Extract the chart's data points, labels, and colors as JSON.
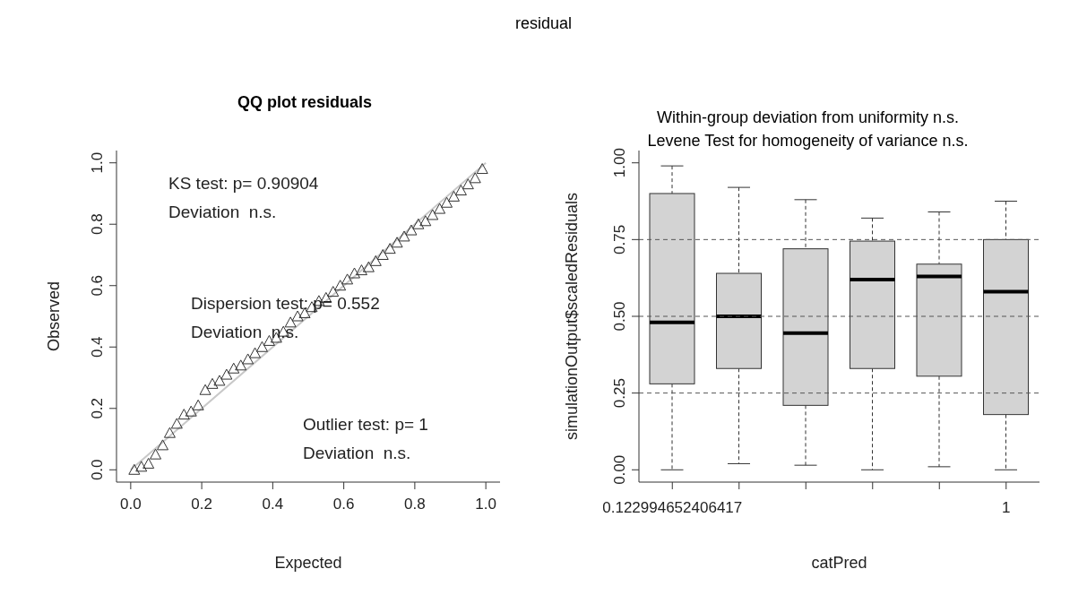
{
  "chart_data": [
    {
      "type": "scatter",
      "title": "QQ plot residuals",
      "xlabel": "Expected",
      "ylabel": "Observed",
      "annotations": [
        "residual",
        "KS test: p= 0.90904",
        "Deviation  n.s.",
        "Dispersion test: p= 0.552",
        "Deviation  n.s.",
        "Outlier test: p= 1",
        "Deviation  n.s."
      ],
      "xlim": [
        -0.04,
        1.04
      ],
      "ylim": [
        -0.04,
        1.04
      ],
      "xticks": [
        {
          "value": 0,
          "label": "0.0"
        },
        {
          "value": 0.2,
          "label": "0.2"
        },
        {
          "value": 0.4,
          "label": "0.4"
        },
        {
          "value": 0.6,
          "label": "0.6"
        },
        {
          "value": 0.8,
          "label": "0.8"
        },
        {
          "value": 1,
          "label": "1.0"
        }
      ],
      "yticks": [
        {
          "value": 0,
          "label": "0.0"
        },
        {
          "value": 0.2,
          "label": "0.2"
        },
        {
          "value": 0.4,
          "label": "0.4"
        },
        {
          "value": 0.6,
          "label": "0.6"
        },
        {
          "value": 0.8,
          "label": "0.8"
        },
        {
          "value": 1,
          "label": "1.0"
        }
      ],
      "series": [
        {
          "type": "line",
          "color": "#c8c8c8",
          "x": [
            0,
            1
          ],
          "values": [
            0,
            1
          ]
        },
        {
          "type": "scatter",
          "color": "#333333",
          "marker": "triangle",
          "x": [
            0.01,
            0.03,
            0.05,
            0.07,
            0.09,
            0.11,
            0.13,
            0.15,
            0.17,
            0.19,
            0.21,
            0.23,
            0.25,
            0.27,
            0.29,
            0.31,
            0.33,
            0.35,
            0.37,
            0.39,
            0.41,
            0.43,
            0.45,
            0.47,
            0.49,
            0.51,
            0.53,
            0.55,
            0.57,
            0.59,
            0.61,
            0.63,
            0.65,
            0.67,
            0.69,
            0.71,
            0.73,
            0.75,
            0.77,
            0.79,
            0.81,
            0.83,
            0.85,
            0.87,
            0.89,
            0.91,
            0.93,
            0.95,
            0.97,
            0.99
          ],
          "values": [
            0.0,
            0.01,
            0.02,
            0.05,
            0.08,
            0.12,
            0.15,
            0.18,
            0.19,
            0.21,
            0.26,
            0.28,
            0.29,
            0.31,
            0.33,
            0.34,
            0.36,
            0.38,
            0.4,
            0.42,
            0.43,
            0.45,
            0.48,
            0.5,
            0.51,
            0.53,
            0.55,
            0.56,
            0.58,
            0.6,
            0.62,
            0.64,
            0.65,
            0.66,
            0.68,
            0.7,
            0.72,
            0.74,
            0.76,
            0.78,
            0.8,
            0.81,
            0.83,
            0.85,
            0.87,
            0.89,
            0.91,
            0.93,
            0.95,
            0.98
          ]
        }
      ]
    },
    {
      "type": "box",
      "title": "Within-group deviation from uniformity n.s.",
      "subtitle": "Levene Test for homogeneity of variance n.s.",
      "xlabel": "catPred",
      "ylabel": "simulationOutput$scaledResiduals",
      "color": "#d3d3d3",
      "categories": [
        "0.122994652406417",
        null,
        null,
        null,
        null,
        "1"
      ],
      "ylim": [
        -0.04,
        1.04
      ],
      "yticks": [
        {
          "value": 0,
          "label": "0.00"
        },
        {
          "value": 0.25,
          "label": "0.25"
        },
        {
          "value": 0.5,
          "label": "0.50"
        },
        {
          "value": 0.75,
          "label": "0.75"
        },
        {
          "value": 1,
          "label": "1.00"
        }
      ],
      "boxes": [
        {
          "low": 0,
          "q1": 0.28,
          "median": 0.48,
          "q3": 0.9,
          "high": 0.99
        },
        {
          "low": 0.02,
          "q1": 0.33,
          "median": 0.5,
          "q3": 0.64,
          "high": 0.92
        },
        {
          "low": 0.015,
          "q1": 0.21,
          "median": 0.445,
          "q3": 0.72,
          "high": 0.88
        },
        {
          "low": 0,
          "q1": 0.33,
          "median": 0.62,
          "q3": 0.745,
          "high": 0.82
        },
        {
          "low": 0.01,
          "q1": 0.305,
          "median": 0.63,
          "q3": 0.67,
          "high": 0.84
        },
        {
          "low": 0,
          "q1": 0.18,
          "median": 0.58,
          "q3": 0.75,
          "high": 0.875
        }
      ],
      "ref_lines": [
        {
          "axis": "y",
          "value": 0.25,
          "line_style": "dashed",
          "color": "#555555"
        },
        {
          "axis": "y",
          "value": 0.5,
          "line_style": "dashed",
          "color": "#555555"
        },
        {
          "axis": "y",
          "value": 0.75,
          "line_style": "dashed",
          "color": "#555555"
        }
      ]
    }
  ]
}
